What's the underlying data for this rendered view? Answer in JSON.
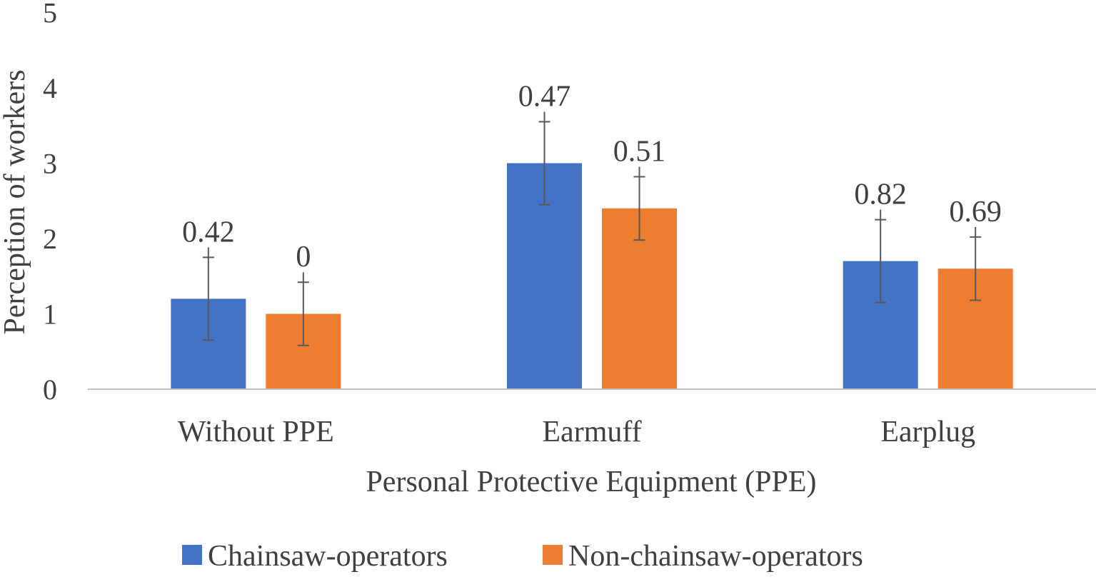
{
  "chart_data": {
    "type": "bar",
    "title": "",
    "xlabel": "Personal Protective Equipment (PPE)",
    "ylabel": "Perception of workers",
    "ylim": [
      0,
      5
    ],
    "yticks": [
      "0",
      "1",
      "2",
      "3",
      "4",
      "5"
    ],
    "grid": false,
    "legend_position": "bottom",
    "categories": [
      "Without PPE",
      "Earmuff",
      "Earplug"
    ],
    "series": [
      {
        "name": "Chainsaw-operators",
        "color": "#4472c4",
        "values": [
          1.2,
          3.0,
          1.7
        ],
        "error_plus": [
          0.55,
          0.55,
          0.55
        ],
        "error_minus": [
          0.55,
          0.55,
          0.55
        ],
        "labels": [
          "0.42",
          "0.47",
          "0.82"
        ]
      },
      {
        "name": "Non-chainsaw-operators",
        "color": "#ed7d31",
        "values": [
          1.0,
          2.4,
          1.6
        ],
        "error_plus": [
          0.42,
          0.42,
          0.42
        ],
        "error_minus": [
          0.42,
          0.42,
          0.42
        ],
        "labels": [
          "0",
          "0.51",
          "0.69"
        ]
      }
    ]
  }
}
